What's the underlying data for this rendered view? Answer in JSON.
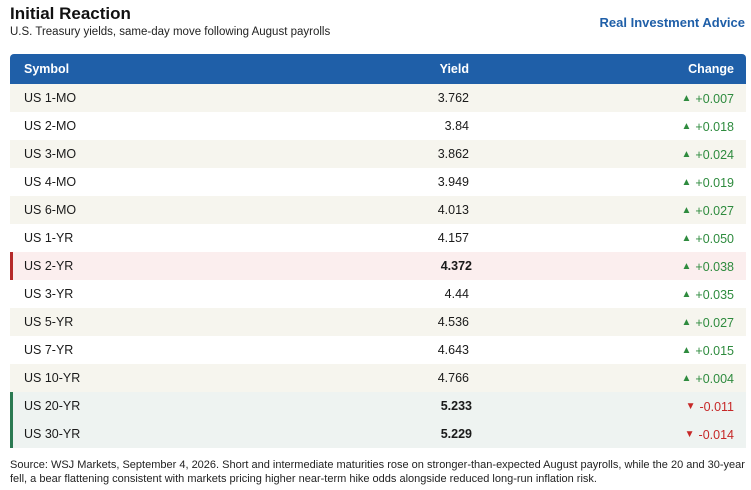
{
  "header": {
    "title": "Initial Reaction",
    "subtitle": "U.S. Treasury yields, same-day move following August payrolls",
    "brand": "Real Investment Advice"
  },
  "table": {
    "columns": [
      "Symbol",
      "Yield",
      "Change"
    ],
    "rows": [
      {
        "symbol": "US 1-MO",
        "yield": "3.762",
        "change": "+0.007",
        "direction": "up"
      },
      {
        "symbol": "US 2-MO",
        "yield": "3.84",
        "change": "+0.018",
        "direction": "up"
      },
      {
        "symbol": "US 3-MO",
        "yield": "3.862",
        "change": "+0.024",
        "direction": "up"
      },
      {
        "symbol": "US 4-MO",
        "yield": "3.949",
        "change": "+0.019",
        "direction": "up"
      },
      {
        "symbol": "US 6-MO",
        "yield": "4.013",
        "change": "+0.027",
        "direction": "up"
      },
      {
        "symbol": "US 1-YR",
        "yield": "4.157",
        "change": "+0.050",
        "direction": "up"
      },
      {
        "symbol": "US 2-YR",
        "yield": "4.372",
        "change": "+0.038",
        "direction": "up"
      },
      {
        "symbol": "US 3-YR",
        "yield": "4.44",
        "change": "+0.035",
        "direction": "up"
      },
      {
        "symbol": "US 5-YR",
        "yield": "4.536",
        "change": "+0.027",
        "direction": "up"
      },
      {
        "symbol": "US 7-YR",
        "yield": "4.643",
        "change": "+0.015",
        "direction": "up"
      },
      {
        "symbol": "US 10-YR",
        "yield": "4.766",
        "change": "+0.004",
        "direction": "up"
      },
      {
        "symbol": "US 20-YR",
        "yield": "5.233",
        "change": "-0.011",
        "direction": "down"
      },
      {
        "symbol": "US 30-YR",
        "yield": "5.229",
        "change": "-0.014",
        "direction": "down"
      }
    ]
  },
  "chart_data": {
    "type": "table",
    "title": "Initial Reaction",
    "subtitle": "U.S. Treasury yields, same-day move following August payrolls",
    "columns": [
      "Symbol",
      "Yield",
      "Change"
    ],
    "categories": [
      "US 1-MO",
      "US 2-MO",
      "US 3-MO",
      "US 4-MO",
      "US 6-MO",
      "US 1-YR",
      "US 2-YR",
      "US 3-YR",
      "US 5-YR",
      "US 7-YR",
      "US 10-YR",
      "US 20-YR",
      "US 30-YR"
    ],
    "series": [
      {
        "name": "Yield",
        "values": [
          3.762,
          3.84,
          3.862,
          3.949,
          4.013,
          4.157,
          4.372,
          4.44,
          4.536,
          4.643,
          4.766,
          5.233,
          5.229
        ]
      },
      {
        "name": "Change",
        "values": [
          0.007,
          0.018,
          0.024,
          0.019,
          0.027,
          0.05,
          0.038,
          0.035,
          0.027,
          0.015,
          0.004,
          -0.011,
          -0.014
        ]
      }
    ],
    "highlighted_rows": {
      "US 2-YR": "red",
      "US 20-YR": "green",
      "US 30-YR": "green"
    }
  },
  "colors": {
    "header_bg": "#1f5fa8",
    "brand": "#1f5fa8",
    "up": "#2e8b3e",
    "down": "#c62828",
    "highlight_red": "#b52a2a",
    "highlight_green": "#2b7a52",
    "alt_row": "#f6f5ee"
  },
  "icons": {
    "up": "triangle-up-icon",
    "down": "triangle-down-icon"
  },
  "footnote": "Source: WSJ Markets, September 4, 2026. Short and intermediate maturities rose on stronger-than-expected August payrolls, while the 20 and 30-year fell, a bear flattening consistent with markets pricing higher near-term hike odds alongside reduced long-run inflation risk."
}
